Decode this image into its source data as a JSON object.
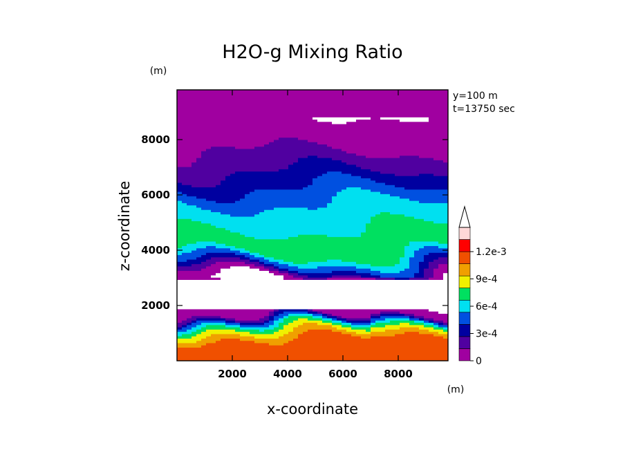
{
  "chart_data": {
    "type": "heatmap",
    "title": "H2O-g Mixing Ratio",
    "xlabel": "x-coordinate",
    "ylabel": "z-coordinate",
    "x_unit": "(m)",
    "y_unit": "(m)",
    "xlim": [
      0,
      9800
    ],
    "ylim": [
      0,
      9800
    ],
    "xticks": [
      2000,
      4000,
      6000,
      8000
    ],
    "xtick_labels": [
      "2000",
      "4000",
      "6000",
      "8000"
    ],
    "yticks": [
      2000,
      4000,
      6000,
      8000
    ],
    "ytick_labels": [
      "2000",
      "4000",
      "6000",
      "8000"
    ],
    "info_lines": [
      "y=100 m",
      "t=13750 sec"
    ],
    "colorbar": {
      "levels": [
        0,
        0.00015,
        0.0003,
        0.00045,
        0.0006,
        0.00075,
        0.0009,
        0.00105,
        0.0012
      ],
      "labels": [
        "0",
        "3e-4",
        "6e-4",
        "9e-4",
        "1.2e-3"
      ],
      "label_values": [
        0,
        0.0003,
        0.0006,
        0.0009,
        0.0012
      ],
      "colors": [
        "#a000a0",
        "#5000a0",
        "#0000a0",
        "#0050e0",
        "#00e0f0",
        "#00e060",
        "#f0f000",
        "#f0a000",
        "#f05000",
        "#ff0000",
        "#ffd8d8"
      ],
      "extend": "max"
    },
    "profile": {
      "z": [
        100,
        400,
        700,
        900,
        1050,
        1200,
        1350,
        1500,
        1600,
        1700,
        2000,
        2900,
        3050,
        3200,
        3350,
        3500,
        3700,
        3900,
        4100,
        4300,
        4500,
        4700,
        4900,
        5100,
        5300,
        5500,
        5700,
        5900,
        6100,
        6300,
        6500,
        6700,
        6900,
        7200,
        7500,
        7800,
        8100,
        8400,
        8700,
        9000,
        9800
      ],
      "value": [
        0.00125,
        0.00125,
        0.00125,
        0.00115,
        0.00098,
        0.00085,
        0.00062,
        0.00035,
        0.00015,
        4e-05,
        0,
        0,
        8e-05,
        0.00022,
        0.00035,
        0.0005,
        0.00062,
        0.00078,
        0.00085,
        0.00088,
        0.00082,
        0.00078,
        0.00072,
        0.00068,
        0.00066,
        0.00064,
        0.0006,
        0.00056,
        0.0005,
        0.00044,
        0.0004,
        0.00036,
        0.00028,
        0.00022,
        0.00016,
        0.00012,
        8e-05,
        4e-05,
        2e-05,
        0,
        0
      ]
    }
  }
}
